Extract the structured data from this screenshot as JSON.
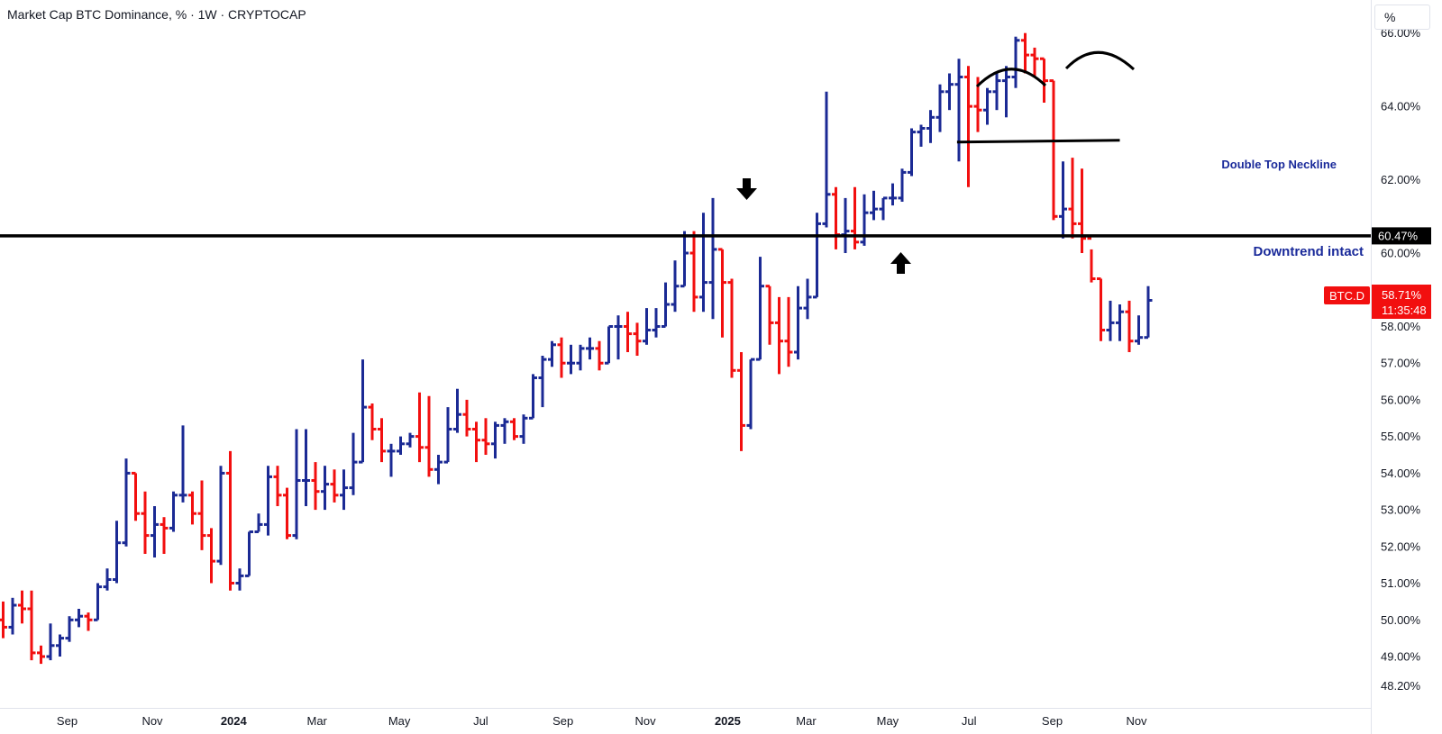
{
  "header": {
    "title": "Market Cap BTC Dominance, % · 1W · CRYPTOCAP",
    "unit_button": "%"
  },
  "colors": {
    "up": "#1b2a94",
    "down": "#f20f0f",
    "line": "#000000",
    "annotation": "#1a2a9a"
  },
  "chart_data": {
    "type": "ohlc",
    "timeframe": "1W",
    "symbol": "BTC.D",
    "ylim": [
      47.6,
      66.9
    ],
    "y_ticks": [
      {
        "value": 48.2,
        "label": "48.20%"
      },
      {
        "value": 49.0,
        "label": "49.00%"
      },
      {
        "value": 50.0,
        "label": "50.00%"
      },
      {
        "value": 51.0,
        "label": "51.00%"
      },
      {
        "value": 52.0,
        "label": "52.00%"
      },
      {
        "value": 53.0,
        "label": "53.00%"
      },
      {
        "value": 54.0,
        "label": "54.00%"
      },
      {
        "value": 55.0,
        "label": "55.00%"
      },
      {
        "value": 56.0,
        "label": "56.00%"
      },
      {
        "value": 57.0,
        "label": "57.00%"
      },
      {
        "value": 58.0,
        "label": "58.00%"
      },
      {
        "value": 59.0,
        "label": "59.00%"
      },
      {
        "value": 60.0,
        "label": "60.00%"
      },
      {
        "value": 62.0,
        "label": "62.00%"
      },
      {
        "value": 64.0,
        "label": "64.00%"
      },
      {
        "value": 66.0,
        "label": "66.00%"
      }
    ],
    "x_ticks": [
      {
        "label": "Sep",
        "week": 0,
        "bold": false
      },
      {
        "label": "Nov",
        "week": 9,
        "bold": false
      },
      {
        "label": "2024",
        "week": 17.6,
        "bold": true
      },
      {
        "label": "Mar",
        "week": 26.4,
        "bold": false
      },
      {
        "label": "May",
        "week": 35.1,
        "bold": false
      },
      {
        "label": "Jul",
        "week": 43.7,
        "bold": false
      },
      {
        "label": "Sep",
        "week": 52.4,
        "bold": false
      },
      {
        "label": "Nov",
        "week": 61.1,
        "bold": false
      },
      {
        "label": "2025",
        "week": 69.8,
        "bold": true
      },
      {
        "label": "Mar",
        "week": 78.1,
        "bold": false
      },
      {
        "label": "May",
        "week": 86.7,
        "bold": false
      },
      {
        "label": "Jul",
        "week": 95.3,
        "bold": false
      },
      {
        "label": "Sep",
        "week": 104.1,
        "bold": false
      },
      {
        "label": "Nov",
        "week": 113.0,
        "bold": false
      }
    ],
    "bars": [
      [
        50.0,
        50.5,
        49.5,
        49.8
      ],
      [
        49.8,
        50.6,
        49.6,
        50.4
      ],
      [
        50.4,
        50.8,
        49.9,
        50.3
      ],
      [
        50.3,
        50.8,
        48.9,
        49.1
      ],
      [
        49.1,
        49.3,
        48.8,
        49.0
      ],
      [
        49.0,
        49.9,
        48.9,
        49.3
      ],
      [
        49.3,
        49.6,
        49.0,
        49.5
      ],
      [
        49.5,
        50.1,
        49.4,
        50.0
      ],
      [
        50.0,
        50.3,
        49.8,
        50.1
      ],
      [
        50.1,
        50.2,
        49.7,
        50.0
      ],
      [
        50.0,
        51.0,
        50.0,
        50.9
      ],
      [
        50.9,
        51.4,
        50.8,
        51.1
      ],
      [
        51.1,
        52.7,
        51.0,
        52.1
      ],
      [
        52.1,
        54.4,
        52.0,
        54.0
      ],
      [
        54.0,
        54.0,
        52.7,
        52.9
      ],
      [
        52.9,
        53.5,
        51.8,
        52.3
      ],
      [
        52.3,
        53.1,
        51.7,
        52.6
      ],
      [
        52.6,
        52.8,
        51.8,
        52.5
      ],
      [
        52.5,
        53.5,
        52.4,
        53.4
      ],
      [
        53.4,
        55.3,
        53.2,
        53.4
      ],
      [
        53.4,
        53.5,
        52.6,
        52.9
      ],
      [
        52.9,
        53.8,
        51.9,
        52.3
      ],
      [
        52.3,
        52.5,
        51.0,
        51.6
      ],
      [
        51.6,
        54.2,
        51.5,
        54.0
      ],
      [
        54.0,
        54.6,
        50.8,
        51.0
      ],
      [
        51.0,
        51.4,
        50.8,
        51.2
      ],
      [
        51.2,
        52.4,
        51.2,
        52.4
      ],
      [
        52.4,
        52.9,
        52.4,
        52.6
      ],
      [
        52.6,
        54.2,
        52.3,
        53.9
      ],
      [
        53.9,
        54.2,
        53.1,
        53.4
      ],
      [
        53.4,
        53.6,
        52.2,
        52.3
      ],
      [
        52.3,
        55.2,
        52.2,
        53.8
      ],
      [
        53.8,
        55.2,
        53.1,
        53.8
      ],
      [
        53.8,
        54.3,
        53.0,
        53.5
      ],
      [
        53.5,
        54.2,
        53.0,
        53.7
      ],
      [
        53.7,
        54.1,
        53.2,
        53.4
      ],
      [
        53.4,
        54.1,
        53.0,
        53.6
      ],
      [
        53.6,
        55.1,
        53.4,
        54.3
      ],
      [
        54.3,
        57.1,
        54.3,
        55.8
      ],
      [
        55.8,
        55.9,
        54.9,
        55.2
      ],
      [
        55.2,
        55.5,
        54.3,
        54.6
      ],
      [
        54.6,
        54.8,
        53.9,
        54.6
      ],
      [
        54.6,
        55.0,
        54.5,
        54.8
      ],
      [
        54.8,
        55.1,
        54.7,
        55.0
      ],
      [
        55.0,
        56.2,
        54.3,
        54.7
      ],
      [
        54.7,
        56.1,
        53.9,
        54.1
      ],
      [
        54.1,
        54.5,
        53.7,
        54.3
      ],
      [
        54.3,
        55.8,
        54.3,
        55.2
      ],
      [
        55.2,
        56.3,
        55.1,
        55.6
      ],
      [
        55.6,
        56.0,
        55.0,
        55.2
      ],
      [
        55.2,
        55.4,
        54.3,
        54.9
      ],
      [
        54.9,
        55.5,
        54.5,
        54.8
      ],
      [
        54.8,
        55.4,
        54.4,
        55.3
      ],
      [
        55.3,
        55.5,
        54.8,
        55.4
      ],
      [
        55.4,
        55.5,
        54.9,
        55.0
      ],
      [
        55.0,
        55.6,
        54.8,
        55.5
      ],
      [
        55.5,
        56.7,
        55.5,
        56.6
      ],
      [
        56.6,
        57.2,
        55.8,
        57.1
      ],
      [
        57.1,
        57.6,
        56.9,
        57.5
      ],
      [
        57.5,
        57.7,
        56.6,
        57.0
      ],
      [
        57.0,
        57.5,
        56.7,
        57.0
      ],
      [
        57.0,
        57.5,
        56.8,
        57.4
      ],
      [
        57.4,
        57.7,
        57.1,
        57.4
      ],
      [
        57.4,
        57.6,
        56.8,
        57.0
      ],
      [
        57.0,
        58.0,
        57.0,
        58.0
      ],
      [
        58.0,
        58.3,
        57.1,
        58.0
      ],
      [
        58.0,
        58.4,
        57.3,
        57.8
      ],
      [
        57.8,
        58.1,
        57.2,
        57.6
      ],
      [
        57.6,
        58.5,
        57.5,
        57.9
      ],
      [
        57.9,
        58.5,
        57.7,
        58.0
      ],
      [
        58.0,
        59.2,
        58.0,
        58.6
      ],
      [
        58.6,
        59.8,
        58.4,
        59.1
      ],
      [
        59.1,
        60.6,
        59.1,
        60.0
      ],
      [
        60.0,
        60.6,
        58.4,
        58.8
      ],
      [
        58.8,
        61.1,
        58.4,
        59.2
      ],
      [
        59.2,
        61.5,
        58.2,
        60.1
      ],
      [
        60.1,
        60.1,
        57.7,
        59.2
      ],
      [
        59.2,
        59.3,
        56.6,
        56.8
      ],
      [
        56.8,
        57.3,
        54.6,
        55.3
      ],
      [
        55.3,
        57.1,
        55.2,
        57.1
      ],
      [
        57.1,
        59.9,
        57.1,
        59.1
      ],
      [
        59.1,
        59.1,
        57.5,
        58.1
      ],
      [
        58.1,
        58.8,
        56.7,
        57.6
      ],
      [
        57.6,
        58.8,
        56.9,
        57.3
      ],
      [
        57.3,
        59.1,
        57.1,
        58.5
      ],
      [
        58.5,
        59.3,
        58.2,
        58.8
      ],
      [
        58.8,
        61.1,
        58.8,
        60.8
      ],
      [
        60.8,
        64.4,
        60.7,
        61.6
      ],
      [
        61.6,
        61.8,
        60.1,
        60.5
      ],
      [
        60.5,
        61.5,
        60.0,
        60.6
      ],
      [
        60.6,
        61.8,
        60.1,
        60.3
      ],
      [
        60.3,
        61.6,
        60.2,
        61.1
      ],
      [
        61.1,
        61.7,
        60.9,
        61.2
      ],
      [
        61.2,
        61.5,
        60.9,
        61.5
      ],
      [
        61.5,
        61.9,
        61.3,
        61.5
      ],
      [
        61.5,
        62.3,
        61.4,
        62.2
      ],
      [
        62.2,
        63.4,
        62.1,
        63.3
      ],
      [
        63.3,
        63.5,
        62.9,
        63.4
      ],
      [
        63.4,
        63.9,
        63.0,
        63.7
      ],
      [
        63.7,
        64.6,
        63.3,
        64.4
      ],
      [
        64.4,
        64.9,
        63.9,
        64.6
      ],
      [
        64.6,
        65.3,
        62.5,
        64.8
      ],
      [
        64.8,
        65.1,
        61.8,
        64.0
      ],
      [
        64.0,
        64.8,
        63.3,
        63.9
      ],
      [
        63.9,
        64.5,
        63.5,
        64.4
      ],
      [
        64.4,
        64.9,
        63.9,
        64.7
      ],
      [
        64.7,
        65.1,
        63.7,
        64.8
      ],
      [
        64.8,
        65.9,
        64.5,
        65.8
      ],
      [
        65.8,
        66.0,
        64.9,
        65.4
      ],
      [
        65.4,
        65.6,
        64.8,
        65.3
      ],
      [
        65.3,
        65.3,
        64.1,
        64.7
      ],
      [
        64.7,
        64.7,
        60.9,
        61.0
      ],
      [
        61.0,
        62.5,
        60.4,
        61.2
      ],
      [
        61.2,
        62.6,
        60.4,
        60.8
      ],
      [
        60.8,
        62.3,
        60.0,
        60.4
      ],
      [
        60.4,
        60.1,
        59.2,
        59.3
      ],
      [
        59.3,
        59.3,
        57.6,
        57.9
      ],
      [
        57.9,
        58.7,
        57.6,
        58.1
      ],
      [
        58.1,
        58.6,
        57.6,
        58.4
      ],
      [
        58.4,
        58.7,
        57.3,
        57.6
      ],
      [
        57.6,
        58.3,
        57.5,
        57.7
      ],
      [
        57.7,
        59.1,
        57.7,
        58.71
      ]
    ],
    "levels": [
      {
        "value": 60.47,
        "label": "60.47%"
      },
      {
        "value": 63.05,
        "from_week": 100.8,
        "to_week": 118.0
      }
    ],
    "annotations": {
      "neckline_label": "Double Top Neckline",
      "downtrend_label": "Downtrend intact"
    },
    "current": {
      "symbol": "BTC.D",
      "value_label": "58.71%",
      "countdown": "11:35:48"
    }
  }
}
